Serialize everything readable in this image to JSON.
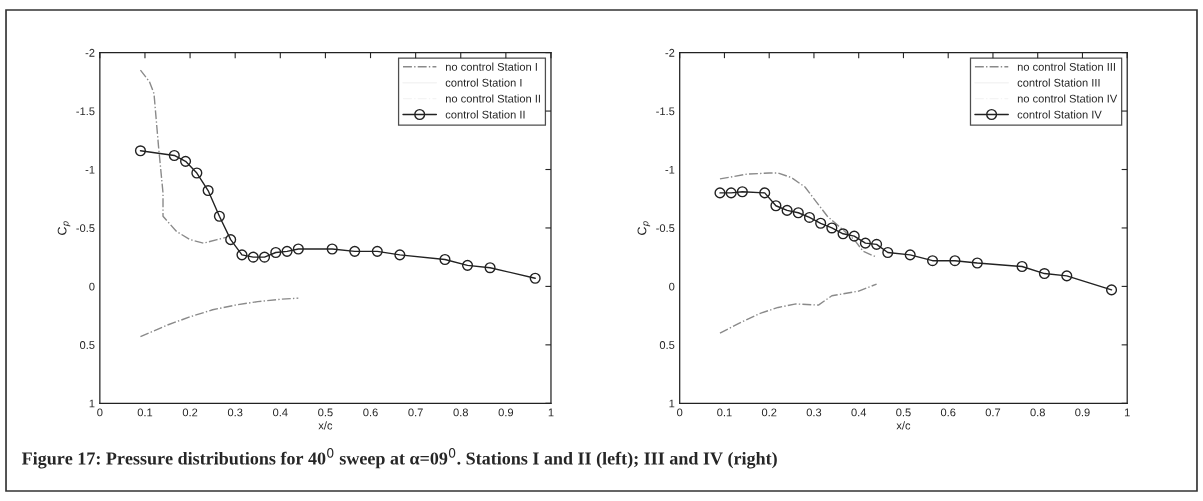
{
  "chart_data": [
    {
      "type": "line",
      "xlabel": "x/c",
      "ylabel": "C$_{p}$",
      "xlim": [
        0,
        1
      ],
      "ylim": [
        1,
        -2
      ],
      "xticks": [
        0,
        0.1,
        0.2,
        0.3,
        0.4,
        0.5,
        0.6,
        0.7,
        0.8,
        0.9,
        1
      ],
      "yticks": [
        -2,
        -1.5,
        -1,
        -0.5,
        0,
        0.5,
        1
      ],
      "grid": false,
      "legend": "top right",
      "annotations": [
        "Figure 17: Pressure distributions for 40$^{0}$ sweep at α=09$^{0}$. Stations I and II (left); III and IV (right)"
      ],
      "series": [
        {
          "name": "no control Station I",
          "color": "#8a8a8a",
          "line_style": "dashed",
          "marker": "none",
          "x": [
            0.09,
            0.11,
            0.12,
            0.13,
            0.14,
            0.14,
            0.17,
            0.2,
            0.23,
            0.26,
            0.28,
            null,
            0.09,
            0.15,
            0.2,
            0.25,
            0.3,
            0.35,
            0.4,
            0.44
          ],
          "values": [
            -1.85,
            -1.75,
            -1.65,
            -1.2,
            -0.8,
            -0.6,
            -0.47,
            -0.4,
            -0.37,
            -0.4,
            -0.42,
            null,
            0.43,
            0.33,
            0.26,
            0.2,
            0.16,
            0.13,
            0.11,
            0.1
          ]
        },
        {
          "name": "control Station I",
          "color": "#f4f4f4",
          "line_style": "solid",
          "marker": "none"
        },
        {
          "name": "no control Station II",
          "color": "#f4f4f4",
          "line_style": "dashed",
          "marker": "none"
        },
        {
          "name": "control Station II",
          "color": "#222222",
          "line_style": "solid",
          "marker": "circle",
          "x": [
            0.09,
            0.165,
            0.19,
            0.215,
            0.24,
            0.265,
            0.29,
            0.315,
            0.34,
            0.365,
            0.39,
            0.415,
            0.44,
            0.515,
            0.565,
            0.615,
            0.665,
            0.765,
            0.815,
            0.865,
            0.965
          ],
          "values": [
            -1.16,
            -1.12,
            -1.07,
            -0.97,
            -0.82,
            -0.6,
            -0.4,
            -0.27,
            -0.25,
            -0.25,
            -0.29,
            -0.3,
            -0.32,
            -0.32,
            -0.3,
            -0.3,
            -0.27,
            -0.23,
            -0.18,
            -0.16,
            -0.07
          ]
        }
      ]
    },
    {
      "type": "line",
      "xlabel": "x/c",
      "ylabel": "C$_{p}$",
      "xlim": [
        0,
        1
      ],
      "ylim": [
        1,
        -2
      ],
      "xticks": [
        0,
        0.1,
        0.2,
        0.3,
        0.4,
        0.5,
        0.6,
        0.7,
        0.8,
        0.9,
        1
      ],
      "yticks": [
        -2,
        -1.5,
        -1,
        -0.5,
        0,
        0.5,
        1
      ],
      "grid": false,
      "legend": "top right",
      "series": [
        {
          "name": "no control Station III",
          "color": "#8a8a8a",
          "line_style": "dashed",
          "marker": "none",
          "x": [
            0.09,
            0.15,
            0.2,
            0.22,
            0.25,
            0.28,
            0.31,
            0.33,
            0.36,
            0.39,
            0.41,
            0.44,
            null,
            0.09,
            0.13,
            0.18,
            0.22,
            0.26,
            0.31,
            0.34,
            0.4,
            0.44
          ],
          "values": [
            -0.92,
            -0.96,
            -0.97,
            -0.97,
            -0.93,
            -0.85,
            -0.7,
            -0.6,
            -0.5,
            -0.4,
            -0.3,
            -0.25,
            null,
            0.4,
            0.32,
            0.23,
            0.18,
            0.15,
            0.16,
            0.08,
            0.04,
            -0.02
          ]
        },
        {
          "name": "control Station III",
          "color": "#f4f4f4",
          "line_style": "solid",
          "marker": "none"
        },
        {
          "name": "no control Station IV",
          "color": "#f4f4f4",
          "line_style": "dashed",
          "marker": "none"
        },
        {
          "name": "control Station IV",
          "color": "#222222",
          "line_style": "solid",
          "marker": "circle",
          "x": [
            0.09,
            0.115,
            0.14,
            0.19,
            0.215,
            0.24,
            0.265,
            0.29,
            0.315,
            0.34,
            0.365,
            0.39,
            0.415,
            0.44,
            0.465,
            0.515,
            0.565,
            0.615,
            0.665,
            0.765,
            0.815,
            0.865,
            0.965
          ],
          "values": [
            -0.8,
            -0.8,
            -0.81,
            -0.8,
            -0.69,
            -0.65,
            -0.63,
            -0.59,
            -0.54,
            -0.5,
            -0.45,
            -0.43,
            -0.37,
            -0.36,
            -0.29,
            -0.27,
            -0.22,
            -0.22,
            -0.2,
            -0.17,
            -0.11,
            -0.09,
            0.03
          ]
        }
      ]
    }
  ]
}
